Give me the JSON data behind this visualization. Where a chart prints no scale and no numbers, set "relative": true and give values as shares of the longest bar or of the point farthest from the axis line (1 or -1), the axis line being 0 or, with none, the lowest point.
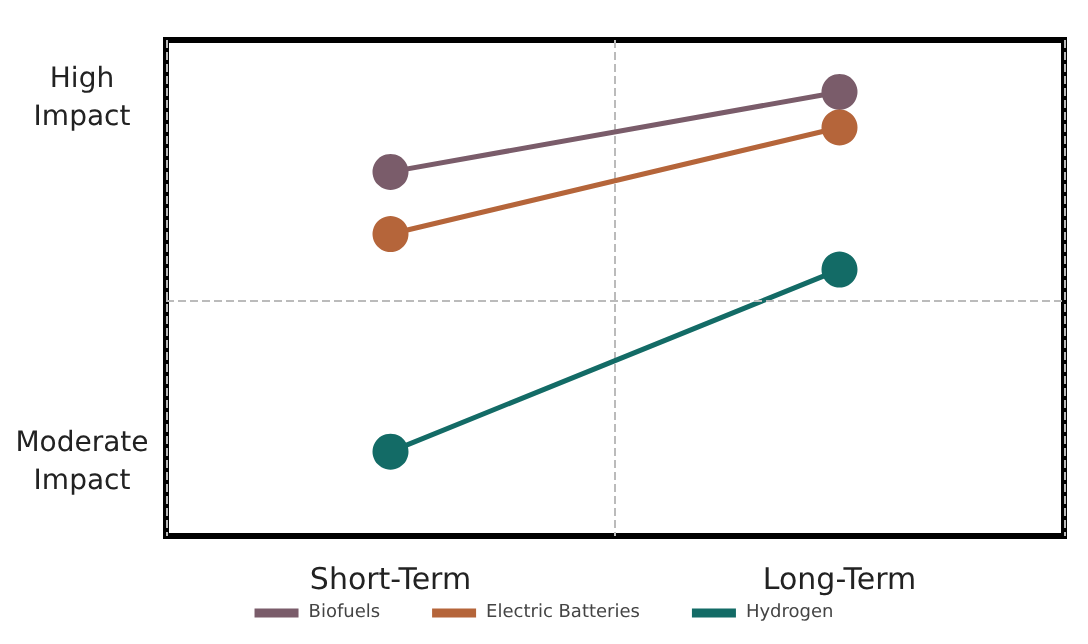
{
  "chart_data": {
    "type": "line",
    "relative": true,
    "categories": [
      "Short-Term",
      "Long-Term"
    ],
    "series": [
      {
        "name": "Biofuels",
        "color": "#7a5c6a",
        "values": [
          0.82,
          1
        ]
      },
      {
        "name": "Electric Batteries",
        "color": "#b5653a",
        "values": [
          0.68,
          0.92
        ]
      },
      {
        "name": "Hydrogen",
        "color": "#136b66",
        "values": [
          0.19,
          0.6
        ]
      }
    ],
    "annotations": [
      "High Impact",
      "Moderate Impact"
    ],
    "ref_lines": [
      {
        "axis": "y",
        "value": 0.53,
        "color": "#bbbbbb",
        "line_style": "dashed"
      }
    ],
    "grid": "x",
    "legend": "bottom",
    "marker": "circle",
    "line_style": "solid"
  }
}
